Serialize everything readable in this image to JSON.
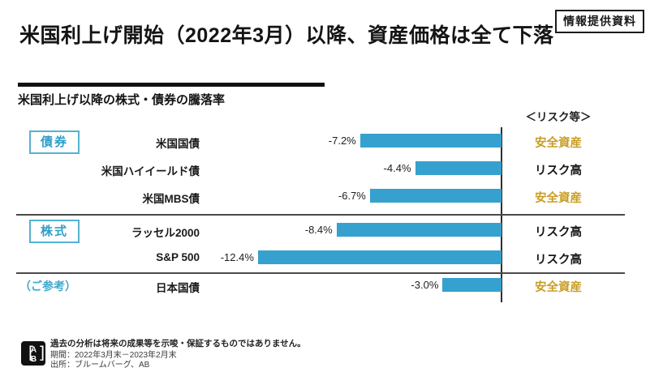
{
  "badge": "情報提供資料",
  "title": "米国利上げ開始（2022年3月）以降、資産価格は全て下落",
  "chart": {
    "subtitle": "米国利上げ以降の株式・債券の騰落率",
    "risk_header": "＜リスク等＞"
  },
  "colors": {
    "bar_blue": "#36A1CE",
    "category_blue": "#3FA9CE",
    "safe_gold": "#C99E26",
    "risk_black": "#161616"
  },
  "chart_data": {
    "type": "bar",
    "orientation": "horizontal",
    "unit": "%",
    "xlim": [
      -13,
      0
    ],
    "grid": false,
    "sections": [
      "債券",
      "株式",
      "（ご参考）"
    ],
    "rows": [
      {
        "group": "債券",
        "group_style": "box",
        "label": "米国国債",
        "value": -7.2,
        "value_label": "-7.2%",
        "risk": "安全資産",
        "risk_type": "safe"
      },
      {
        "group": "",
        "group_style": "",
        "label": "米国ハイイールド債",
        "value": -4.4,
        "value_label": "-4.4%",
        "risk": "リスク高",
        "risk_type": "high"
      },
      {
        "group": "",
        "group_style": "",
        "label": "米国MBS債",
        "value": -6.7,
        "value_label": "-6.7%",
        "risk": "安全資産",
        "risk_type": "safe"
      },
      {
        "group": "株式",
        "group_style": "box",
        "label": "ラッセル2000",
        "value": -8.4,
        "value_label": "-8.4%",
        "risk": "リスク高",
        "risk_type": "high"
      },
      {
        "group": "",
        "group_style": "",
        "label": "S&P 500",
        "value": -12.4,
        "value_label": "-12.4%",
        "risk": "リスク高",
        "risk_type": "high"
      },
      {
        "group": "（ご参考）",
        "group_style": "plain",
        "label": "日本国債",
        "value": -3.0,
        "value_label": "-3.0%",
        "risk": "安全資産",
        "risk_type": "safe"
      }
    ]
  },
  "footer": {
    "logo": "AB",
    "disclaimer": "過去の分析は将来の成果等を示唆・保証するものではありません。",
    "period": "期間：2022年3月末－2023年2月末",
    "source": "出所：ブルームバーグ、AB"
  }
}
